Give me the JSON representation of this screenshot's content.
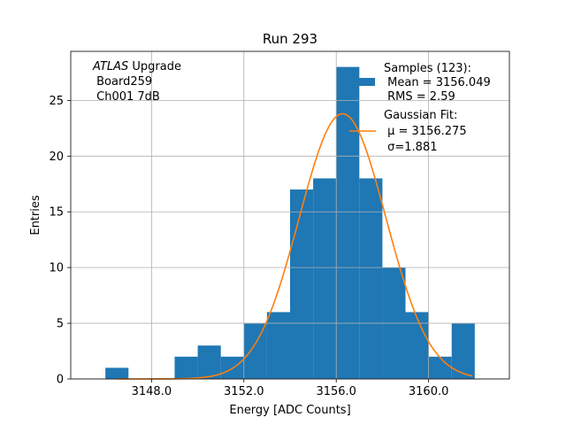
{
  "chart_data": {
    "type": "bar",
    "title": "Run 293",
    "xlabel": "Energy [ADC Counts]",
    "ylabel": "Entries",
    "xlim": [
      3144.5,
      3163.5
    ],
    "ylim": [
      0,
      29.4
    ],
    "grid": true,
    "x_ticks": [
      3148.0,
      3152.0,
      3156.0,
      3160.0
    ],
    "x_tick_labels": [
      "3148.0",
      "3152.0",
      "3156.0",
      "3160.0"
    ],
    "y_ticks": [
      0,
      5,
      10,
      15,
      20,
      25
    ],
    "y_tick_labels": [
      "0",
      "5",
      "10",
      "15",
      "20",
      "25"
    ],
    "histogram": {
      "name": "Samples",
      "color": "#1f77b4",
      "bin_edges": [
        3146,
        3147,
        3148,
        3149,
        3150,
        3151,
        3152,
        3153,
        3154,
        3155,
        3156,
        3157,
        3158,
        3159,
        3160,
        3161,
        3162
      ],
      "counts": [
        1,
        0,
        0,
        2,
        3,
        2,
        5,
        6,
        17,
        18,
        28,
        18,
        10,
        6,
        2,
        5
      ]
    },
    "fit": {
      "name": "Gaussian Fit",
      "color": "#ff7f0e",
      "mu": 3156.275,
      "sigma": 1.881,
      "peak": 23.8,
      "x_range": [
        3146.5,
        3161.9
      ]
    },
    "annotation_lines": [
      "ATLAS Upgrade",
      " Board259",
      " Ch001 7dB"
    ],
    "legend": {
      "position": "top-right",
      "samples_lines": [
        "Samples (123):",
        " Mean = 3156.049",
        " RMS = 2.59"
      ],
      "fit_lines": [
        "Gaussian Fit:",
        " μ = 3156.275",
        " σ=1.881"
      ]
    }
  }
}
